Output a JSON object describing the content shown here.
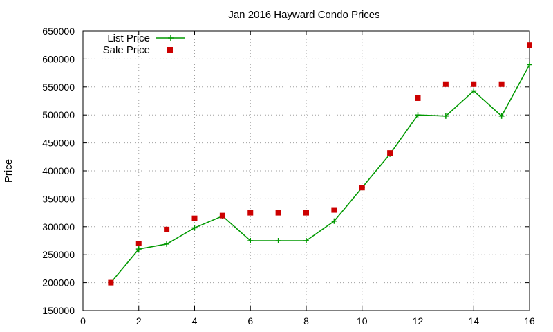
{
  "chart_data": {
    "type": "line",
    "title": "Jan 2016 Hayward Condo Prices",
    "xlabel": "",
    "ylabel": "Price",
    "xlim": [
      0,
      16
    ],
    "ylim": [
      150000,
      650000
    ],
    "x_ticks": [
      0,
      2,
      4,
      6,
      8,
      10,
      12,
      14,
      16
    ],
    "y_ticks": [
      150000,
      200000,
      250000,
      300000,
      350000,
      400000,
      450000,
      500000,
      550000,
      600000,
      650000
    ],
    "grid": true,
    "legend_position": "top-left",
    "series": [
      {
        "name": "List Price",
        "style": "line-plus",
        "color": "#009900",
        "x": [
          1,
          2,
          3,
          4,
          5,
          6,
          7,
          8,
          9,
          10,
          11,
          12,
          13,
          14,
          15,
          16
        ],
        "values": [
          200000,
          260000,
          269000,
          298000,
          319000,
          275000,
          275000,
          275000,
          310000,
          370000,
          430000,
          500000,
          498000,
          543000,
          498000,
          590000
        ]
      },
      {
        "name": "Sale Price",
        "style": "square-points",
        "color": "#cc0000",
        "x": [
          1,
          2,
          3,
          4,
          5,
          6,
          7,
          8,
          9,
          10,
          11,
          12,
          13,
          14,
          15,
          16
        ],
        "values": [
          200000,
          270000,
          295000,
          315000,
          320000,
          325000,
          325000,
          325000,
          330000,
          370000,
          432000,
          530000,
          555000,
          555000,
          555000,
          625000
        ]
      }
    ]
  }
}
